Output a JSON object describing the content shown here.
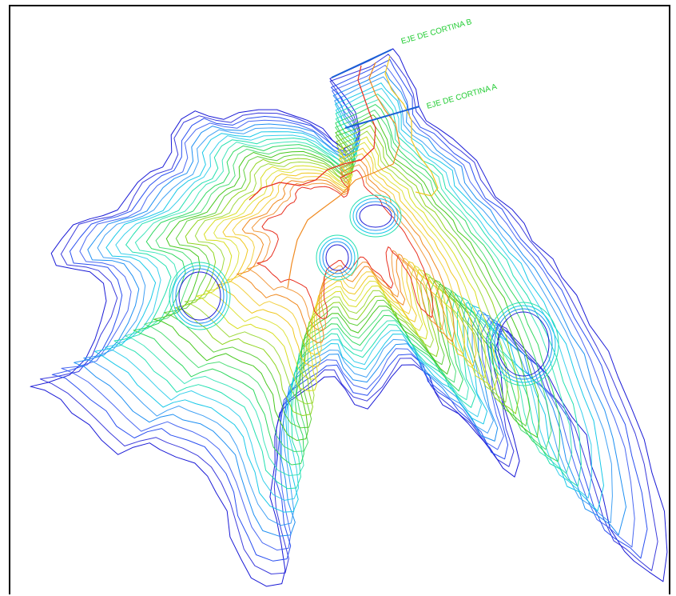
{
  "map": {
    "labels": {
      "axis_b": "EJE DE CORTINA B",
      "axis_a": "EJE DE CORTINA A"
    },
    "contour_colors": [
      "#1a1ad6",
      "#2a4ff0",
      "#1e8ff2",
      "#18c8e8",
      "#22e0b0",
      "#30d860",
      "#46c81e",
      "#8fd41e",
      "#d8de20",
      "#f0c820",
      "#f08a20",
      "#e83020"
    ],
    "dam_axis_color": "#1a5fd6"
  }
}
